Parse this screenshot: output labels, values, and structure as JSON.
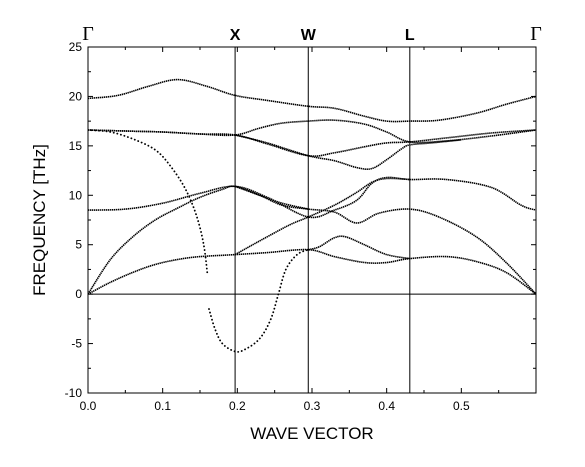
{
  "chart_data": {
    "type": "line",
    "title": "",
    "xlabel": "WAVE VECTOR",
    "ylabel": "FREQUENCY  [THz]",
    "xlim": [
      0.0,
      0.6
    ],
    "ylim": [
      -10,
      25
    ],
    "xticks": [
      0.0,
      0.1,
      0.2,
      0.3,
      0.4,
      0.5
    ],
    "xtick_labels": [
      "0.0",
      "0.1",
      "0.2",
      "0.3",
      "0.4",
      "0.5"
    ],
    "yticks": [
      -10,
      -5,
      0,
      5,
      10,
      15,
      20,
      25
    ],
    "ytick_labels": [
      "-10",
      "-5",
      "0",
      "5",
      "10",
      "15",
      "20",
      "25"
    ],
    "grid": false,
    "legend": "none",
    "line_color": "#000000",
    "zero_line": 0,
    "high_symmetry_points": [
      {
        "label": "Γ",
        "x": 0.0
      },
      {
        "label": "X",
        "x": 0.197
      },
      {
        "label": "W",
        "x": 0.295
      },
      {
        "label": "L",
        "x": 0.431
      },
      {
        "label": "Γ",
        "x": 0.6
      }
    ],
    "series": [
      {
        "points": [
          [
            0.0,
            0
          ],
          [
            0.03,
            1.2
          ],
          [
            0.06,
            2.2
          ],
          [
            0.09,
            3.0
          ],
          [
            0.12,
            3.5
          ],
          [
            0.15,
            3.8
          ],
          [
            0.197,
            4.0
          ],
          [
            0.24,
            4.2
          ],
          [
            0.295,
            4.5
          ],
          [
            0.33,
            3.8
          ],
          [
            0.37,
            3.2
          ],
          [
            0.4,
            3.2
          ],
          [
            0.431,
            3.6
          ],
          [
            0.48,
            3.8
          ],
          [
            0.52,
            3.3
          ],
          [
            0.56,
            2.2
          ],
          [
            0.6,
            0
          ]
        ]
      },
      {
        "points": [
          [
            0.0,
            0
          ],
          [
            0.03,
            3.5
          ],
          [
            0.06,
            5.8
          ],
          [
            0.09,
            7.5
          ],
          [
            0.12,
            8.7
          ],
          [
            0.15,
            9.8
          ],
          [
            0.18,
            10.6
          ],
          [
            0.197,
            10.9
          ],
          [
            0.23,
            10.0
          ],
          [
            0.26,
            9.0
          ],
          [
            0.295,
            8.6
          ],
          [
            0.33,
            8.3
          ],
          [
            0.36,
            7.2
          ],
          [
            0.39,
            8.2
          ],
          [
            0.431,
            8.6
          ],
          [
            0.47,
            7.8
          ],
          [
            0.52,
            5.8
          ],
          [
            0.56,
            3.2
          ],
          [
            0.6,
            0
          ]
        ]
      },
      {
        "points": [
          [
            0.0,
            8.5
          ],
          [
            0.05,
            8.6
          ],
          [
            0.1,
            9.2
          ],
          [
            0.15,
            10.2
          ],
          [
            0.197,
            10.9
          ],
          [
            0.24,
            9.8
          ],
          [
            0.295,
            7.8
          ],
          [
            0.33,
            8.5
          ],
          [
            0.36,
            9.5
          ],
          [
            0.38,
            11.2
          ],
          [
            0.4,
            11.8
          ],
          [
            0.431,
            11.6
          ],
          [
            0.48,
            11.6
          ],
          [
            0.54,
            10.8
          ],
          [
            0.58,
            9.0
          ],
          [
            0.6,
            8.5
          ]
        ]
      },
      {
        "points": [
          [
            0.0,
            16.6
          ],
          [
            0.05,
            16.5
          ],
          [
            0.1,
            16.4
          ],
          [
            0.15,
            16.2
          ],
          [
            0.197,
            16.1
          ],
          [
            0.24,
            15.2
          ],
          [
            0.295,
            14.0
          ],
          [
            0.33,
            14.3
          ],
          [
            0.37,
            14.9
          ],
          [
            0.4,
            15.3
          ],
          [
            0.431,
            15.4
          ],
          [
            0.48,
            15.8
          ],
          [
            0.54,
            16.3
          ],
          [
            0.6,
            16.6
          ]
        ]
      },
      {
        "points": [
          [
            0.0,
            16.6
          ],
          [
            0.05,
            16.5
          ],
          [
            0.1,
            16.4
          ],
          [
            0.15,
            16.2
          ],
          [
            0.197,
            16.1
          ],
          [
            0.23,
            16.8
          ],
          [
            0.26,
            17.3
          ],
          [
            0.295,
            17.5
          ],
          [
            0.33,
            17.6
          ],
          [
            0.37,
            17.2
          ],
          [
            0.4,
            16.4
          ],
          [
            0.431,
            15.4
          ],
          [
            0.48,
            15.5
          ],
          [
            0.54,
            16.0
          ],
          [
            0.6,
            16.6
          ]
        ]
      },
      {
        "points": [
          [
            0.0,
            19.8
          ],
          [
            0.04,
            20.1
          ],
          [
            0.08,
            21.0
          ],
          [
            0.12,
            21.7
          ],
          [
            0.16,
            21.0
          ],
          [
            0.197,
            20.1
          ],
          [
            0.24,
            19.6
          ],
          [
            0.295,
            19.0
          ],
          [
            0.33,
            18.8
          ],
          [
            0.37,
            18.0
          ],
          [
            0.4,
            17.5
          ],
          [
            0.431,
            17.5
          ],
          [
            0.47,
            17.6
          ],
          [
            0.52,
            18.3
          ],
          [
            0.56,
            19.2
          ],
          [
            0.6,
            20.0
          ]
        ]
      },
      {
        "points": [
          [
            0.197,
            16.1
          ],
          [
            0.24,
            15.3
          ],
          [
            0.295,
            14.0
          ],
          [
            0.33,
            13.5
          ],
          [
            0.36,
            12.8
          ],
          [
            0.38,
            12.7
          ],
          [
            0.4,
            13.6
          ],
          [
            0.42,
            14.7
          ],
          [
            0.431,
            15.1
          ],
          [
            0.46,
            15.3
          ],
          [
            0.5,
            15.6
          ]
        ]
      },
      {
        "points": [
          [
            0.197,
            4.0
          ],
          [
            0.24,
            5.8
          ],
          [
            0.27,
            7.0
          ],
          [
            0.295,
            7.8
          ],
          [
            0.33,
            9.0
          ],
          [
            0.36,
            10.3
          ],
          [
            0.38,
            11.3
          ],
          [
            0.4,
            11.7
          ],
          [
            0.431,
            11.6
          ]
        ]
      },
      {
        "points": [
          [
            0.295,
            4.5
          ],
          [
            0.31,
            4.8
          ],
          [
            0.33,
            5.7
          ],
          [
            0.345,
            5.8
          ],
          [
            0.37,
            5.0
          ],
          [
            0.4,
            4.0
          ],
          [
            0.431,
            3.6
          ]
        ]
      },
      {
        "points": [
          [
            0.197,
            10.9
          ],
          [
            0.23,
            10.0
          ],
          [
            0.26,
            9.2
          ],
          [
            0.295,
            8.6
          ]
        ]
      }
    ],
    "dotted_series": [
      {
        "points": [
          [
            0.0,
            16.6
          ],
          [
            0.03,
            16.4
          ],
          [
            0.06,
            15.7
          ],
          [
            0.09,
            14.6
          ],
          [
            0.11,
            13.0
          ],
          [
            0.13,
            10.7
          ],
          [
            0.145,
            8.0
          ],
          [
            0.155,
            5.0
          ],
          [
            0.16,
            2.0
          ]
        ]
      },
      {
        "points": [
          [
            0.162,
            -1.5
          ],
          [
            0.17,
            -3.5
          ],
          [
            0.18,
            -5.0
          ],
          [
            0.197,
            -5.8
          ],
          [
            0.21,
            -5.6
          ],
          [
            0.23,
            -4.5
          ],
          [
            0.245,
            -2.5
          ],
          [
            0.255,
            0.0
          ],
          [
            0.265,
            2.5
          ],
          [
            0.28,
            4.0
          ],
          [
            0.295,
            4.5
          ]
        ]
      }
    ]
  }
}
